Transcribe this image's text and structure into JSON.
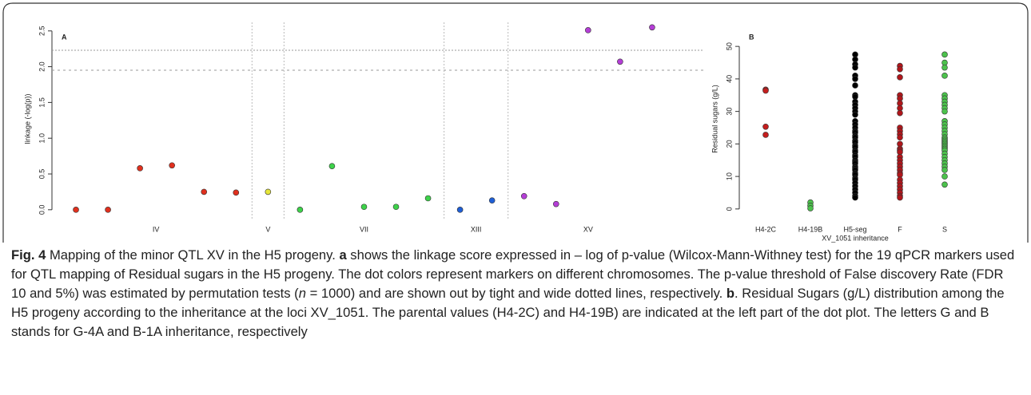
{
  "chart_data": [
    {
      "type": "scatter",
      "panel_label": "A",
      "ylabel": "linkage (-log(p))",
      "xlim": [
        0.25,
        20.6
      ],
      "ylim": [
        -0.08,
        2.62
      ],
      "yticks": [
        {
          "value": 0,
          "label": "0.0"
        },
        {
          "value": 0.5,
          "label": "0.5"
        },
        {
          "value": 1,
          "label": "1.0"
        },
        {
          "value": 1.5,
          "label": "1.5"
        },
        {
          "value": 2,
          "label": "2.0"
        },
        {
          "value": 2.5,
          "label": "2.5"
        }
      ],
      "thresholds": [
        2.23,
        1.95
      ],
      "series": [
        {
          "name": "IV",
          "color": "#e0301e",
          "x": [
            1,
            2,
            3,
            4,
            5,
            6
          ],
          "values": [
            0.0,
            0.0,
            0.58,
            0.62,
            0.25,
            0.24
          ]
        },
        {
          "name": "V",
          "color": "#e6e63a",
          "x": [
            7
          ],
          "values": [
            0.25
          ]
        },
        {
          "name": "VII",
          "color": "#3ed24a",
          "x": [
            8,
            9,
            10,
            11,
            12
          ],
          "values": [
            0.0,
            0.61,
            0.04,
            0.04,
            0.16
          ]
        },
        {
          "name": "XIII",
          "color": "#1f5fd6",
          "x": [
            13,
            14
          ],
          "values": [
            0.0,
            0.13
          ]
        },
        {
          "name": "XV",
          "color": "#b43ed6",
          "x": [
            15,
            16,
            17,
            18,
            19
          ],
          "values": [
            0.19,
            0.08,
            2.51,
            2.07,
            2.55
          ]
        }
      ]
    },
    {
      "type": "strip",
      "panel_label": "B",
      "xlabel": "XV_1051 inheritance",
      "ylabel": "Residual sugars (g/L)",
      "ylim": [
        -2,
        57.4
      ],
      "yticks": [
        0,
        10,
        20,
        30,
        40,
        50
      ],
      "series": [
        {
          "name": "H4-2C",
          "color": "#c41e1e",
          "values": [
            36.7,
            36.4,
            25.3,
            22.8
          ]
        },
        {
          "name": "H4-19B",
          "color": "#4cc24c",
          "values": [
            2.0,
            1.0,
            0.2
          ]
        },
        {
          "name": "H5-seg",
          "color": "#000000",
          "values": [
            47.5,
            46,
            44.5,
            43.5,
            41,
            40,
            38,
            35,
            34.5,
            33,
            32,
            31,
            30,
            29,
            27,
            26,
            25,
            24,
            23.5,
            22.5,
            22,
            21,
            20.5,
            19.5,
            19,
            18,
            17.5,
            16.5,
            16,
            15,
            14.5,
            14,
            13,
            12.5,
            12,
            11,
            10.5,
            9.5,
            9,
            8,
            7,
            6,
            5,
            4,
            3.5
          ]
        },
        {
          "name": "F",
          "color": "#b0161b",
          "values": [
            44,
            43,
            40.5,
            35,
            34,
            32.5,
            31,
            29.5,
            25,
            24,
            23,
            22,
            20,
            18.5,
            18,
            17.5,
            16,
            15,
            14,
            13,
            12,
            11,
            10.5,
            9,
            8,
            7,
            6,
            5,
            4,
            3.5
          ]
        },
        {
          "name": "S",
          "color": "#4cc24c",
          "values": [
            47.5,
            45,
            43.5,
            41,
            35,
            34,
            33,
            32,
            31,
            30,
            27,
            26,
            25,
            24,
            23,
            22,
            21.5,
            21,
            20.5,
            20,
            19.5,
            19,
            18.5,
            18,
            17,
            16,
            15,
            14,
            13,
            12,
            10,
            7.5
          ]
        }
      ]
    }
  ],
  "caption": [
    {
      "text": "Fig. 4",
      "style": "bold"
    },
    {
      "text": " Mapping of the minor QTL XV in the H5 progeny. "
    },
    {
      "text": "a",
      "style": "bold"
    },
    {
      "text": " shows the linkage score expressed in – log of p-value (Wilcox-Mann-Withney test) for the 19 qPCR markers used for QTL mapping of Residual sugars in the H5 progeny. The dot colors represent markers on different chromosomes. The p-value threshold of False discovery Rate (FDR 10 and 5%) was estimated by permutation tests ("
    },
    {
      "text": "n",
      "style": "italic"
    },
    {
      "text": " = 1000) and are shown out by tight and wide dotted lines, respectively. "
    },
    {
      "text": "b",
      "style": "bold"
    },
    {
      "text": ". Residual Sugars (g/L) distribution among the H5 progeny according to the inheritance at the loci XV_1051. The parental values (H4-2C) and H4-19B) are indicated at the left part of the dot plot. The letters G and B stands for G-4A and B-1A inheritance, respectively"
    }
  ]
}
